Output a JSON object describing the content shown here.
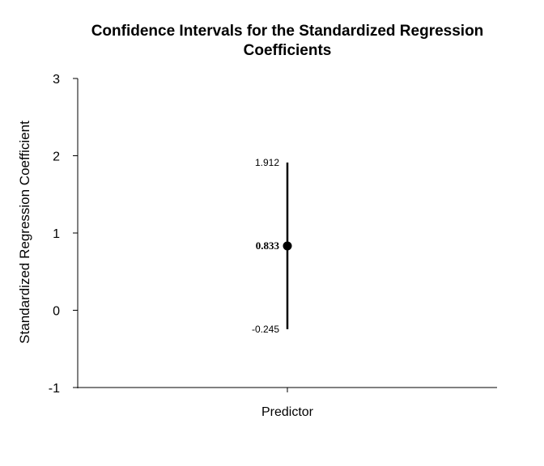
{
  "chart_data": {
    "type": "errorbar",
    "title_lines": [
      "Confidence Intervals for the Standardized Regression",
      "Coefficients"
    ],
    "xlabel": "",
    "ylabel": "Standardized Regression Coefficient",
    "categories": [
      "Predictor"
    ],
    "ylim": [
      -1,
      3
    ],
    "yticks": [
      -1,
      0,
      1,
      2,
      3
    ],
    "points": [
      {
        "category": "Predictor",
        "estimate": 0.833,
        "lower": -0.245,
        "upper": 1.912,
        "estimate_label": "0.833",
        "lower_label": "-0.245",
        "upper_label": "1.912"
      }
    ],
    "grid": false,
    "legend": "none"
  }
}
